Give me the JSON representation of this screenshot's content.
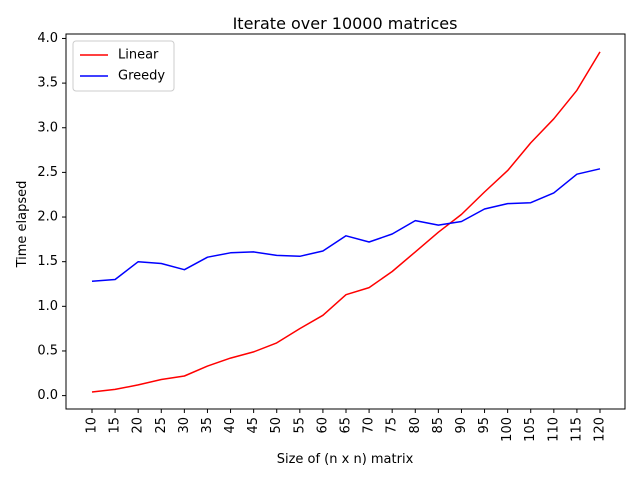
{
  "chart_data": {
    "type": "line",
    "title": "Iterate over 10000 matrices",
    "xlabel": "Size of (n x n) matrix",
    "ylabel": "Time elapsed",
    "x": [
      10,
      15,
      20,
      25,
      30,
      35,
      40,
      45,
      50,
      55,
      60,
      65,
      70,
      75,
      80,
      85,
      90,
      95,
      100,
      105,
      110,
      115,
      120
    ],
    "ylim": [
      -0.15,
      4.05
    ],
    "yticks": [
      0.0,
      0.5,
      1.0,
      1.5,
      2.0,
      2.5,
      3.0,
      3.5,
      4.0
    ],
    "ytick_labels": [
      "0.0",
      "0.5",
      "1.0",
      "1.5",
      "2.0",
      "2.5",
      "3.0",
      "3.5",
      "4.0"
    ],
    "legend_position": "upper-left",
    "grid": false,
    "series": [
      {
        "name": "Linear",
        "color": "#ff0000",
        "values": [
          0.04,
          0.07,
          0.12,
          0.18,
          0.22,
          0.33,
          0.42,
          0.49,
          0.59,
          0.75,
          0.9,
          1.13,
          1.21,
          1.39,
          1.61,
          1.83,
          2.03,
          2.28,
          2.52,
          2.83,
          3.1,
          3.42,
          3.85
        ]
      },
      {
        "name": "Greedy",
        "color": "#0000ff",
        "values": [
          1.28,
          1.3,
          1.5,
          1.48,
          1.41,
          1.55,
          1.6,
          1.61,
          1.57,
          1.56,
          1.62,
          1.79,
          1.72,
          1.81,
          1.96,
          1.91,
          1.95,
          2.09,
          2.15,
          2.16,
          2.27,
          2.48,
          2.54
        ]
      }
    ]
  }
}
